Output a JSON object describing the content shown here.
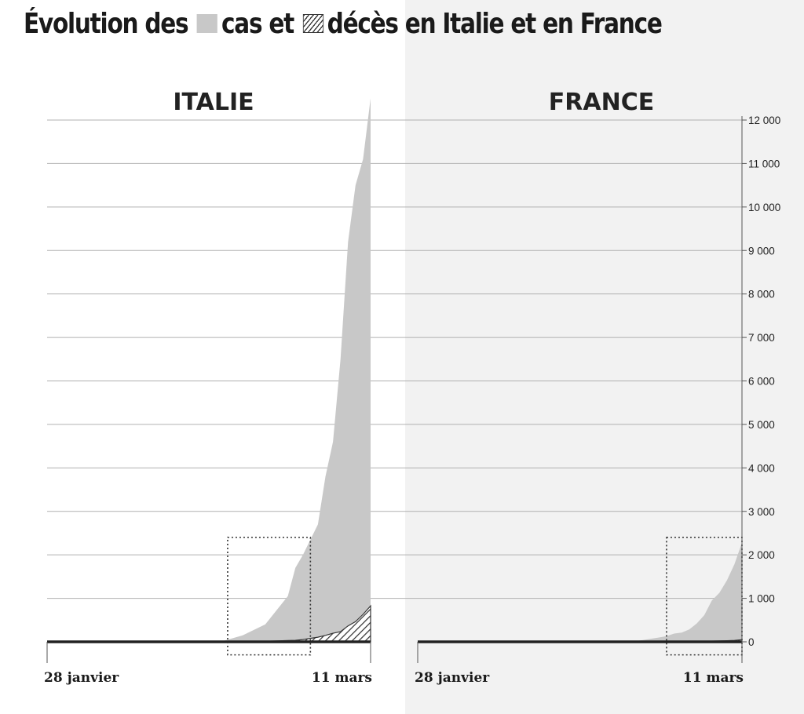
{
  "title": {
    "part1": "Évolution des",
    "part2": "cas et",
    "part3": "décès en Italie et en France"
  },
  "colors": {
    "cas": "#c8c8c8",
    "deces": "#333333",
    "grid": "#b0b0b0",
    "right_panel_bg": "#f2f2f2"
  },
  "chart_data": [
    {
      "type": "area",
      "panel_title": "ITALIE",
      "x_start_label": "28 janvier",
      "x_end_label": "11 mars",
      "x": [
        "2020-01-28",
        "2020-02-20",
        "2020-02-23",
        "2020-02-26",
        "2020-02-29",
        "2020-03-01",
        "2020-03-02",
        "2020-03-04",
        "2020-03-05",
        "2020-03-06",
        "2020-03-07",
        "2020-03-08",
        "2020-03-09",
        "2020-03-10",
        "2020-03-11"
      ],
      "series": [
        {
          "name": "cas",
          "values": [
            0,
            0,
            150,
            400,
            1050,
            1700,
            2000,
            2700,
            3800,
            4600,
            6500,
            9200,
            10500,
            11100,
            12500
          ]
        },
        {
          "name": "décès",
          "values": [
            0,
            0,
            5,
            12,
            29,
            34,
            52,
            107,
            148,
            197,
            233,
            366,
            463,
            631,
            827
          ]
        }
      ],
      "zoom_box": {
        "x_from": "2020-02-21",
        "x_to": "2020-03-03",
        "y_from": -300,
        "y_to": 2400
      }
    },
    {
      "type": "area",
      "panel_title": "FRANCE",
      "x_start_label": "28 janvier",
      "x_end_label": "11 mars",
      "x": [
        "2020-01-28",
        "2020-02-26",
        "2020-02-29",
        "2020-03-01",
        "2020-03-02",
        "2020-03-03",
        "2020-03-04",
        "2020-03-05",
        "2020-03-06",
        "2020-03-07",
        "2020-03-08",
        "2020-03-09",
        "2020-03-10",
        "2020-03-11"
      ],
      "series": [
        {
          "name": "cas",
          "values": [
            0,
            18,
            100,
            130,
            190,
            212,
            285,
            423,
            613,
            949,
            1126,
            1412,
            1784,
            2281
          ]
        },
        {
          "name": "décès",
          "values": [
            0,
            2,
            2,
            2,
            3,
            4,
            4,
            5,
            9,
            16,
            19,
            25,
            33,
            48
          ]
        }
      ],
      "zoom_box": {
        "x_from": "2020-03-01",
        "x_to": "2020-03-11",
        "y_from": -300,
        "y_to": 2400
      }
    }
  ],
  "y_axis": {
    "ylim": [
      0,
      12000
    ],
    "ticks": [
      {
        "value": 0,
        "label": "0"
      },
      {
        "value": 1000,
        "label": "1 000"
      },
      {
        "value": 2000,
        "label": "2 000"
      },
      {
        "value": 3000,
        "label": "3 000"
      },
      {
        "value": 4000,
        "label": "4 000"
      },
      {
        "value": 5000,
        "label": "5 000"
      },
      {
        "value": 6000,
        "label": "6 000"
      },
      {
        "value": 7000,
        "label": "7 000"
      },
      {
        "value": 8000,
        "label": "8 000"
      },
      {
        "value": 9000,
        "label": "9 000"
      },
      {
        "value": 10000,
        "label": "10 000"
      },
      {
        "value": 11000,
        "label": "11 000"
      },
      {
        "value": 12000,
        "label": "12 000"
      }
    ]
  }
}
